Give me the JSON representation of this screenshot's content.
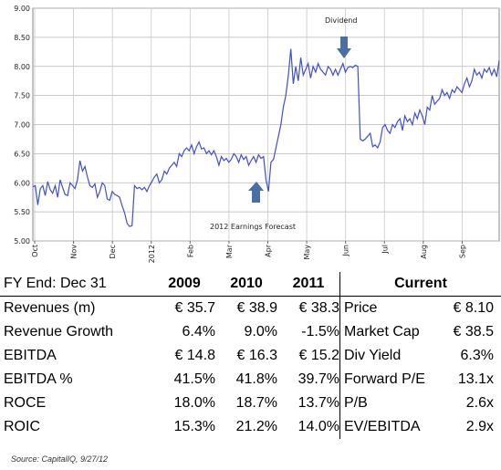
{
  "chart_data": {
    "type": "line",
    "ylim": [
      5.0,
      9.0
    ],
    "yticks": [
      "5.00",
      "5.50",
      "6.00",
      "6.50",
      "7.00",
      "7.50",
      "8.00",
      "8.50",
      "9.00"
    ],
    "xticks": [
      "Oct",
      "Nov",
      "Dec",
      "2012",
      "Feb",
      "Mar",
      "Apr",
      "May",
      "Jun",
      "Jul",
      "Aug",
      "Sep"
    ],
    "grid": true,
    "line_color": "#3f4fd4",
    "series": [
      {
        "values": [
          5.93,
          5.95,
          5.62,
          5.9,
          5.95,
          5.78,
          6.02,
          5.88,
          5.82,
          5.95,
          5.75,
          6.05,
          5.92,
          5.8,
          5.78,
          6.0,
          5.95,
          5.9,
          6.05,
          6.38,
          6.2,
          6.28,
          6.1,
          5.95,
          5.92,
          5.98,
          5.75,
          5.85,
          6.0,
          5.95,
          5.72,
          5.7,
          5.85,
          5.8,
          5.78,
          5.75,
          5.6,
          5.48,
          5.3,
          5.25,
          5.26,
          5.95,
          5.9,
          5.92,
          5.88,
          5.92,
          5.85,
          5.95,
          6.02,
          6.1,
          6.15,
          6.0,
          6.05,
          6.2,
          6.15,
          6.25,
          6.3,
          6.35,
          6.28,
          6.5,
          6.45,
          6.55,
          6.6,
          6.55,
          6.65,
          6.5,
          6.62,
          6.7,
          6.58,
          6.6,
          6.5,
          6.55,
          6.48,
          6.55,
          6.45,
          6.3,
          6.45,
          6.38,
          6.42,
          6.35,
          6.4,
          6.5,
          6.45,
          6.35,
          6.48,
          6.4,
          6.45,
          6.3,
          6.38,
          6.45,
          6.35,
          6.48,
          6.42,
          6.45,
          6.05,
          5.85,
          6.35,
          6.4,
          6.6,
          6.8,
          7.0,
          7.3,
          7.5,
          7.85,
          8.3,
          7.7,
          8.0,
          7.75,
          8.15,
          7.85,
          7.95,
          8.05,
          7.8,
          8.0,
          7.9,
          8.05,
          7.95,
          7.9,
          7.85,
          8.0,
          7.95,
          7.85,
          7.95,
          7.85,
          7.95,
          8.05,
          7.9,
          7.98,
          8.0,
          7.98,
          8.02,
          8.0,
          6.75,
          6.72,
          6.75,
          6.8,
          6.85,
          6.62,
          6.65,
          6.6,
          6.7,
          6.95,
          7.0,
          6.9,
          6.85,
          7.0,
          6.95,
          7.05,
          7.1,
          6.9,
          7.15,
          7.05,
          7.1,
          7.0,
          7.2,
          7.1,
          7.25,
          7.15,
          7.0,
          7.3,
          7.25,
          7.5,
          7.35,
          7.4,
          7.45,
          7.6,
          7.5,
          7.55,
          7.45,
          7.6,
          7.55,
          7.65,
          7.6,
          7.55,
          7.7,
          7.8,
          7.65,
          7.75,
          7.95,
          7.85,
          7.9,
          7.8,
          7.95,
          7.9,
          7.98,
          7.85,
          7.95,
          7.82,
          8.1
        ]
      }
    ],
    "annotations": {
      "dividend": "Dividend",
      "earnings": "2012 Earnings Forecast"
    },
    "arrow_color": "#4a6fa5"
  },
  "table": {
    "head": {
      "label": "FY End: Dec 31",
      "y2009": "2009",
      "y2010": "2010",
      "y2011": "2011",
      "current": "Current"
    },
    "rows": [
      {
        "label": "Revenues (m)",
        "v2009": "€ 35.7",
        "v2010": "€ 38.9",
        "v2011": "€ 38.3",
        "metric": "Price",
        "value": "€ 8.10"
      },
      {
        "label": "Revenue Growth",
        "v2009": "6.4%",
        "v2010": "9.0%",
        "v2011": "-1.5%",
        "metric": "Market Cap",
        "value": "€ 38.5"
      },
      {
        "label": "EBITDA",
        "v2009": "€ 14.8",
        "v2010": "€ 16.3",
        "v2011": "€ 15.2",
        "metric": "Div Yield",
        "value": "6.3%"
      },
      {
        "label": "EBITDA %",
        "v2009": "41.5%",
        "v2010": "41.8%",
        "v2011": "39.7%",
        "metric": "Forward P/E",
        "value": "13.1x"
      },
      {
        "label": "ROCE",
        "v2009": "18.0%",
        "v2010": "18.7%",
        "v2011": "13.7%",
        "metric": "P/B",
        "value": "2.6x"
      },
      {
        "label": "ROIC",
        "v2009": "15.3%",
        "v2010": "21.2%",
        "v2011": "14.0%",
        "metric": "EV/EBITDA",
        "value": "2.9x"
      }
    ]
  },
  "source": "Source: CapitalIQ, 9/27/12"
}
